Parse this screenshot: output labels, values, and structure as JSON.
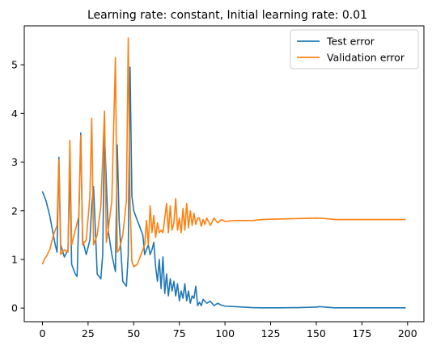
{
  "chart_data": {
    "type": "line",
    "title": "Learning rate: constant, Initial learning rate: 0.01",
    "xlabel": "",
    "ylabel": "",
    "xlim": [
      -9.95,
      208.95
    ],
    "ylim": [
      -0.28,
      5.8
    ],
    "xticks": [
      0,
      25,
      50,
      75,
      100,
      125,
      150,
      175,
      200
    ],
    "yticks": [
      0,
      1,
      2,
      3,
      4,
      5
    ],
    "grid": false,
    "legend_position": "top-right",
    "series": [
      {
        "name": "Test error",
        "color": "#1f77b4",
        "x": [
          0,
          2,
          4,
          6,
          7,
          8,
          9,
          10,
          12,
          14,
          15,
          16,
          18,
          19,
          20,
          21,
          22,
          24,
          26,
          27,
          28,
          30,
          32,
          33,
          34,
          36,
          38,
          40,
          41,
          42,
          44,
          46,
          47,
          48,
          49,
          50,
          52,
          54,
          55,
          56,
          57,
          58,
          59,
          60,
          61,
          62,
          63,
          64,
          65,
          66,
          67,
          68,
          69,
          70,
          71,
          72,
          73,
          74,
          75,
          76,
          77,
          78,
          79,
          80,
          81,
          82,
          83,
          84,
          85,
          86,
          87,
          88,
          90,
          92,
          94,
          96,
          98,
          100,
          105,
          110,
          115,
          120,
          130,
          140,
          150,
          152,
          155,
          160,
          170,
          180,
          190,
          199
        ],
        "values": [
          2.4,
          2.2,
          1.9,
          1.5,
          1.3,
          1.15,
          3.1,
          1.3,
          1.05,
          1.2,
          2.9,
          0.9,
          0.7,
          0.65,
          2.0,
          3.6,
          1.4,
          1.1,
          1.4,
          2.1,
          2.5,
          0.7,
          0.6,
          1.1,
          3.6,
          1.6,
          1.1,
          0.75,
          3.35,
          1.8,
          0.55,
          0.45,
          1.1,
          4.95,
          2.3,
          2.0,
          1.8,
          1.6,
          1.5,
          1.1,
          1.2,
          1.3,
          1.1,
          1.2,
          1.35,
          0.85,
          0.55,
          1.0,
          0.4,
          1.05,
          0.3,
          0.7,
          0.25,
          0.6,
          0.35,
          0.55,
          0.25,
          0.5,
          0.15,
          0.35,
          0.2,
          0.5,
          0.15,
          0.35,
          0.1,
          0.25,
          0.2,
          0.45,
          0.05,
          0.12,
          0.05,
          0.18,
          0.1,
          0.14,
          0.05,
          0.1,
          0.06,
          0.04,
          0.03,
          0.02,
          0.01,
          0.005,
          0.005,
          0.01,
          0.02,
          0.03,
          0.02,
          0.005,
          0.005,
          0.005,
          0.005,
          0.005
        ]
      },
      {
        "name": "Validation error",
        "color": "#ff7f0e",
        "x": [
          0,
          1,
          2,
          4,
          6,
          8,
          9,
          10,
          12,
          14,
          15,
          16,
          18,
          20,
          21,
          22,
          24,
          26,
          27,
          28,
          30,
          32,
          34,
          35,
          36,
          38,
          40,
          41,
          42,
          44,
          46,
          47,
          48,
          49,
          50,
          52,
          54,
          56,
          57,
          58,
          59,
          60,
          61,
          62,
          63,
          64,
          65,
          66,
          67,
          68,
          69,
          70,
          71,
          72,
          73,
          74,
          75,
          76,
          77,
          78,
          79,
          80,
          81,
          82,
          83,
          84,
          85,
          86,
          87,
          88,
          89,
          90,
          92,
          94,
          96,
          98,
          100,
          105,
          110,
          115,
          120,
          130,
          140,
          150,
          155,
          160,
          170,
          180,
          190,
          199
        ],
        "values": [
          0.9,
          1.0,
          1.05,
          1.2,
          1.5,
          1.7,
          3.05,
          1.1,
          1.2,
          1.15,
          3.45,
          1.3,
          1.6,
          1.9,
          3.55,
          1.3,
          1.4,
          2.3,
          3.9,
          1.3,
          1.5,
          2.1,
          4.05,
          1.35,
          1.6,
          2.2,
          5.15,
          1.15,
          1.2,
          1.5,
          2.2,
          5.55,
          2.2,
          0.95,
          0.85,
          0.9,
          1.1,
          1.3,
          1.8,
          1.3,
          2.1,
          1.55,
          1.9,
          1.45,
          1.75,
          1.55,
          1.6,
          1.55,
          1.85,
          2.15,
          1.55,
          2.1,
          1.6,
          1.75,
          2.25,
          1.6,
          1.85,
          1.55,
          2.05,
          1.6,
          2.15,
          1.65,
          2.0,
          1.7,
          1.95,
          1.72,
          1.85,
          1.85,
          1.68,
          1.82,
          1.72,
          1.85,
          1.7,
          1.85,
          1.75,
          1.82,
          1.78,
          1.8,
          1.8,
          1.8,
          1.82,
          1.83,
          1.84,
          1.85,
          1.84,
          1.82,
          1.82,
          1.82,
          1.82,
          1.82
        ]
      }
    ]
  }
}
